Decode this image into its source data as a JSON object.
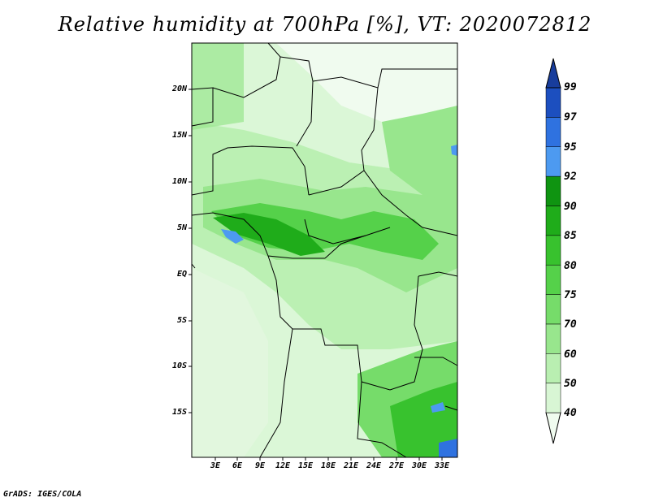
{
  "title": "Relative humidity at 700hPa [%], VT: 2020072812",
  "footer": "GrADS: IGES/COLA",
  "lat_labels": [
    "20N",
    "15N",
    "10N",
    "5N",
    "EQ",
    "5S",
    "10S",
    "15S"
  ],
  "lon_labels": [
    "3E",
    "6E",
    "9E",
    "12E",
    "15E",
    "18E",
    "21E",
    "24E",
    "27E",
    "30E",
    "33E"
  ],
  "colorbar": {
    "levels": [
      "40",
      "50",
      "60",
      "70",
      "75",
      "80",
      "85",
      "90",
      "92",
      "95",
      "97",
      "99"
    ],
    "colors": [
      "#f0fbef",
      "#d8f6d4",
      "#b9efb1",
      "#98e68d",
      "#76dc6a",
      "#55d14a",
      "#38c22e",
      "#1fac1a",
      "#0f9411",
      "#4d9af0",
      "#2f72e0",
      "#1c4fbf",
      "#183d9c"
    ]
  }
}
